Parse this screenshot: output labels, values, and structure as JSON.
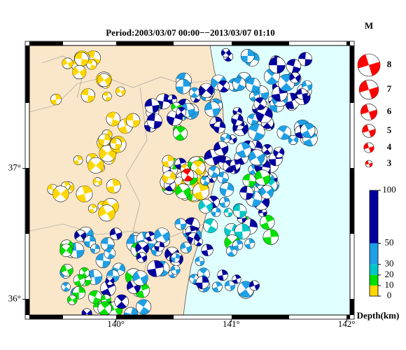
{
  "title": "Period:2003/03/07 00:00−−2013/03/07 01:10",
  "map": {
    "xlim": [
      139.25,
      142.03
    ],
    "ylim": [
      35.88,
      37.94
    ],
    "xticks": [
      {
        "value": 140,
        "label": "140°"
      },
      {
        "value": 141,
        "label": "141°"
      },
      {
        "value": 142,
        "label": "142°"
      }
    ],
    "yticks": [
      {
        "value": 36,
        "label": "36°"
      },
      {
        "value": 37,
        "label": "37°"
      }
    ]
  },
  "magnitude_legend": {
    "title": "M",
    "values": [
      8,
      7,
      6,
      5,
      4,
      3
    ],
    "color": "#ff0000"
  },
  "depth_scale": {
    "label": "Depth(km)",
    "lim": [
      0,
      100
    ],
    "ticks": [
      0,
      10,
      20,
      30,
      50,
      100
    ],
    "bands": [
      {
        "from": 0,
        "to": 10,
        "color": "#ffd700"
      },
      {
        "from": 10,
        "to": 20,
        "color": "#00e000"
      },
      {
        "from": 20,
        "to": 30,
        "color": "#00c8c8"
      },
      {
        "from": 30,
        "to": 50,
        "color": "#1ea0e6"
      },
      {
        "from": 50,
        "to": 100,
        "color": "#0000a0"
      }
    ]
  }
}
